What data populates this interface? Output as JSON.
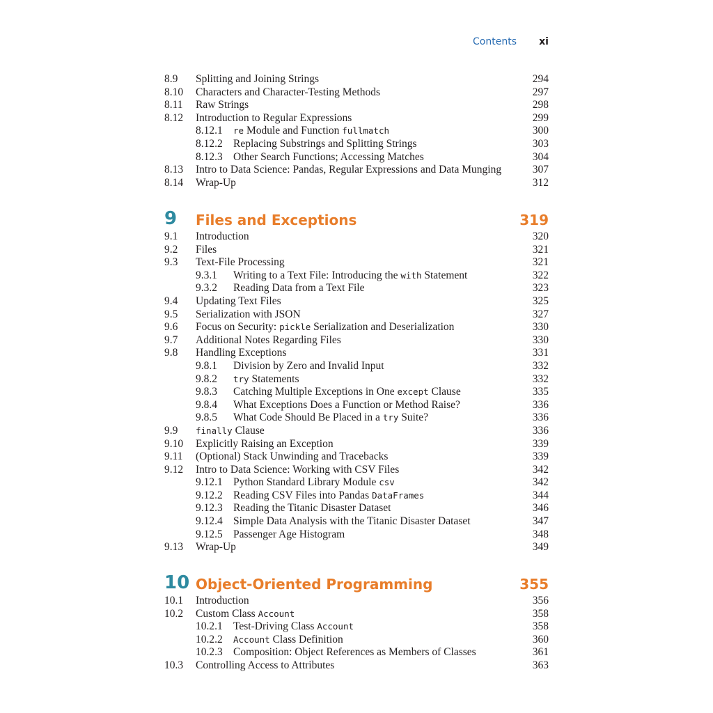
{
  "running_head": {
    "title": "Contents",
    "page": "xi"
  },
  "colors": {
    "chapter_number": "#2e8aa0",
    "chapter_title": "#e87d2a",
    "running_head": "#2a6db3"
  },
  "sections": [
    {
      "chapter": null,
      "entries": [
        {
          "num": "8.9",
          "level": 1,
          "page": "294",
          "title": [
            {
              "text": "Splitting and Joining Strings"
            }
          ]
        },
        {
          "num": "8.10",
          "level": 1,
          "page": "297",
          "title": [
            {
              "text": "Characters and Character-Testing Methods"
            }
          ]
        },
        {
          "num": "8.11",
          "level": 1,
          "page": "298",
          "title": [
            {
              "text": "Raw Strings"
            }
          ]
        },
        {
          "num": "8.12",
          "level": 1,
          "page": "299",
          "title": [
            {
              "text": "Introduction to Regular Expressions"
            }
          ]
        },
        {
          "num": "8.12.1",
          "level": 2,
          "page": "300",
          "title": [
            {
              "text": "re",
              "code": true
            },
            {
              "text": " Module and Function "
            },
            {
              "text": "fullmatch",
              "code": true
            }
          ]
        },
        {
          "num": "8.12.2",
          "level": 2,
          "page": "303",
          "title": [
            {
              "text": "Replacing Substrings and Splitting Strings"
            }
          ]
        },
        {
          "num": "8.12.3",
          "level": 2,
          "page": "304",
          "title": [
            {
              "text": "Other Search Functions; Accessing Matches"
            }
          ]
        },
        {
          "num": "8.13",
          "level": 1,
          "page": "307",
          "title": [
            {
              "text": "Intro to Data Science: Pandas, Regular Expressions and Data Munging"
            }
          ]
        },
        {
          "num": "8.14",
          "level": 1,
          "page": "312",
          "title": [
            {
              "text": "Wrap-Up"
            }
          ]
        }
      ]
    },
    {
      "chapter": {
        "num": "9",
        "title": "Files and Exceptions",
        "page": "319"
      },
      "entries": [
        {
          "num": "9.1",
          "level": 1,
          "page": "320",
          "title": [
            {
              "text": "Introduction"
            }
          ]
        },
        {
          "num": "9.2",
          "level": 1,
          "page": "321",
          "title": [
            {
              "text": "Files"
            }
          ]
        },
        {
          "num": "9.3",
          "level": 1,
          "page": "321",
          "title": [
            {
              "text": "Text-File Processing"
            }
          ]
        },
        {
          "num": "9.3.1",
          "level": 2,
          "page": "322",
          "title": [
            {
              "text": "Writing to a Text File: Introducing the "
            },
            {
              "text": "with",
              "code": true
            },
            {
              "text": " Statement"
            }
          ]
        },
        {
          "num": "9.3.2",
          "level": 2,
          "page": "323",
          "title": [
            {
              "text": "Reading Data from a Text File"
            }
          ]
        },
        {
          "num": "9.4",
          "level": 1,
          "page": "325",
          "title": [
            {
              "text": "Updating Text Files"
            }
          ]
        },
        {
          "num": "9.5",
          "level": 1,
          "page": "327",
          "title": [
            {
              "text": "Serialization with JSON"
            }
          ]
        },
        {
          "num": "9.6",
          "level": 1,
          "page": "330",
          "title": [
            {
              "text": "Focus on Security: "
            },
            {
              "text": "pickle",
              "code": true
            },
            {
              "text": " Serialization and Deserialization"
            }
          ]
        },
        {
          "num": "9.7",
          "level": 1,
          "page": "330",
          "title": [
            {
              "text": "Additional Notes Regarding Files"
            }
          ]
        },
        {
          "num": "9.8",
          "level": 1,
          "page": "331",
          "title": [
            {
              "text": "Handling Exceptions"
            }
          ]
        },
        {
          "num": "9.8.1",
          "level": 2,
          "page": "332",
          "title": [
            {
              "text": "Division by Zero and Invalid Input"
            }
          ]
        },
        {
          "num": "9.8.2",
          "level": 2,
          "page": "332",
          "title": [
            {
              "text": "try",
              "code": true
            },
            {
              "text": " Statements"
            }
          ]
        },
        {
          "num": "9.8.3",
          "level": 2,
          "page": "335",
          "title": [
            {
              "text": "Catching Multiple Exceptions in One "
            },
            {
              "text": "except",
              "code": true
            },
            {
              "text": " Clause"
            }
          ]
        },
        {
          "num": "9.8.4",
          "level": 2,
          "page": "336",
          "title": [
            {
              "text": "What Exceptions Does a Function or Method Raise?"
            }
          ]
        },
        {
          "num": "9.8.5",
          "level": 2,
          "page": "336",
          "title": [
            {
              "text": "What Code Should Be Placed in a "
            },
            {
              "text": "try",
              "code": true
            },
            {
              "text": " Suite?"
            }
          ]
        },
        {
          "num": "9.9",
          "level": 1,
          "page": "336",
          "title": [
            {
              "text": "finally",
              "code": true
            },
            {
              "text": " Clause"
            }
          ]
        },
        {
          "num": "9.10",
          "level": 1,
          "page": "339",
          "title": [
            {
              "text": "Explicitly Raising an Exception"
            }
          ]
        },
        {
          "num": "9.11",
          "level": 1,
          "page": "339",
          "title": [
            {
              "text": "(Optional) Stack Unwinding and Tracebacks"
            }
          ]
        },
        {
          "num": "9.12",
          "level": 1,
          "page": "342",
          "title": [
            {
              "text": "Intro to Data Science: Working with CSV Files"
            }
          ]
        },
        {
          "num": "9.12.1",
          "level": 2,
          "page": "342",
          "title": [
            {
              "text": "Python Standard Library Module "
            },
            {
              "text": "csv",
              "code": true
            }
          ]
        },
        {
          "num": "9.12.2",
          "level": 2,
          "page": "344",
          "title": [
            {
              "text": "Reading CSV Files into Pandas "
            },
            {
              "text": "DataFrames",
              "code": true
            }
          ]
        },
        {
          "num": "9.12.3",
          "level": 2,
          "page": "346",
          "title": [
            {
              "text": "Reading the Titanic Disaster Dataset"
            }
          ]
        },
        {
          "num": "9.12.4",
          "level": 2,
          "page": "347",
          "title": [
            {
              "text": "Simple Data Analysis with the Titanic Disaster Dataset"
            }
          ]
        },
        {
          "num": "9.12.5",
          "level": 2,
          "page": "348",
          "title": [
            {
              "text": "Passenger Age Histogram"
            }
          ]
        },
        {
          "num": "9.13",
          "level": 1,
          "page": "349",
          "title": [
            {
              "text": "Wrap-Up"
            }
          ]
        }
      ]
    },
    {
      "chapter": {
        "num": "10",
        "title": "Object-Oriented Programming",
        "page": "355"
      },
      "entries": [
        {
          "num": "10.1",
          "level": 1,
          "page": "356",
          "title": [
            {
              "text": "Introduction"
            }
          ]
        },
        {
          "num": "10.2",
          "level": 1,
          "page": "358",
          "title": [
            {
              "text": "Custom Class "
            },
            {
              "text": "Account",
              "code": true
            }
          ]
        },
        {
          "num": "10.2.1",
          "level": 2,
          "page": "358",
          "title": [
            {
              "text": "Test-Driving Class "
            },
            {
              "text": "Account",
              "code": true
            }
          ]
        },
        {
          "num": "10.2.2",
          "level": 2,
          "page": "360",
          "title": [
            {
              "text": "Account",
              "code": true
            },
            {
              "text": " Class Definition"
            }
          ]
        },
        {
          "num": "10.2.3",
          "level": 2,
          "page": "361",
          "title": [
            {
              "text": "Composition: Object References as Members of Classes"
            }
          ]
        },
        {
          "num": "10.3",
          "level": 1,
          "page": "363",
          "title": [
            {
              "text": "Controlling Access to Attributes"
            }
          ]
        }
      ]
    }
  ]
}
